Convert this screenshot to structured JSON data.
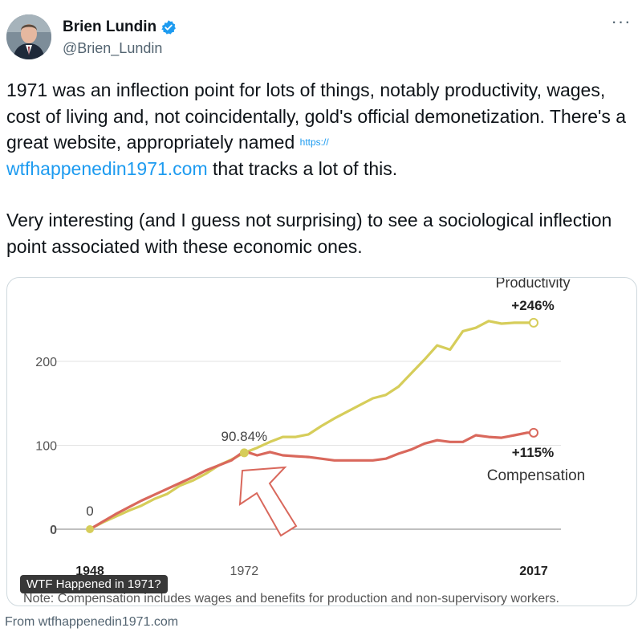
{
  "tweet": {
    "display_name": "Brien Lundin",
    "handle": "@Brien_Lundin",
    "more_label": "···",
    "paragraph1_before_link": "1971 was an inflection point for lots of things, notably productivity, wages, cost of living and, not coincidentally, gold's official demonetization. There's a great website, appropriately named ",
    "link_prefix": "https://",
    "link_text": "wtfhappenedin1971.com",
    "paragraph1_after_link": " that tracks a lot of this.",
    "paragraph2": "Very interesting (and I guess not surprising) to see a sociological inflection point associated with these economic ones."
  },
  "card": {
    "badge": "WTF Happened in 1971?",
    "source": "From wtfhappenedin1971.com"
  },
  "chart_data": {
    "type": "line",
    "y_ticks": [
      0,
      100,
      200
    ],
    "ylim": [
      0,
      260
    ],
    "x_ticks": [
      1948,
      1972,
      2017
    ],
    "xlim": [
      1948,
      2017
    ],
    "series": [
      {
        "name": "Productivity",
        "color": "#d6cd5a",
        "x": [
          1948,
          1950,
          1952,
          1954,
          1956,
          1958,
          1960,
          1962,
          1964,
          1966,
          1968,
          1970,
          1972,
          1974,
          1976,
          1978,
          1980,
          1982,
          1984,
          1986,
          1988,
          1990,
          1992,
          1994,
          1996,
          1998,
          2000,
          2002,
          2004,
          2006,
          2008,
          2010,
          2012,
          2014,
          2016,
          2017
        ],
        "values": [
          0,
          8,
          15,
          22,
          28,
          36,
          42,
          52,
          58,
          66,
          76,
          83,
          91,
          97,
          104,
          110,
          110,
          113,
          123,
          132,
          140,
          148,
          156,
          160,
          170,
          186,
          202,
          219,
          214,
          236,
          240,
          248,
          245,
          246,
          246,
          246
        ]
      },
      {
        "name": "Compensation",
        "color": "#d9685c",
        "x": [
          1948,
          1950,
          1952,
          1954,
          1956,
          1958,
          1960,
          1962,
          1964,
          1966,
          1968,
          1970,
          1972,
          1974,
          1976,
          1978,
          1980,
          1982,
          1984,
          1986,
          1988,
          1990,
          1992,
          1994,
          1996,
          1998,
          2000,
          2002,
          2004,
          2006,
          2008,
          2010,
          2012,
          2014,
          2016,
          2017
        ],
        "values": [
          0,
          9,
          18,
          26,
          34,
          41,
          48,
          55,
          62,
          70,
          76,
          82,
          93,
          88,
          92,
          88,
          87,
          86,
          84,
          82,
          82,
          82,
          82,
          84,
          90,
          95,
          102,
          106,
          104,
          104,
          112,
          110,
          109,
          112,
          115,
          115
        ]
      }
    ],
    "annotations": {
      "productivity_label": "Productivity",
      "productivity_change": "+246%",
      "compensation_change": "+115%",
      "compensation_label": "Compensation",
      "start_value": "0",
      "point_1972_value": "90.84%",
      "point_1972_x": 1972,
      "point_1972_y": 91
    },
    "note": "Note: Compensation includes wages and benefits for production and non-supervisory workers."
  },
  "colors": {
    "link": "#1d9bf0",
    "verified": "#1d9bf0",
    "arrow": "#d9685c"
  }
}
